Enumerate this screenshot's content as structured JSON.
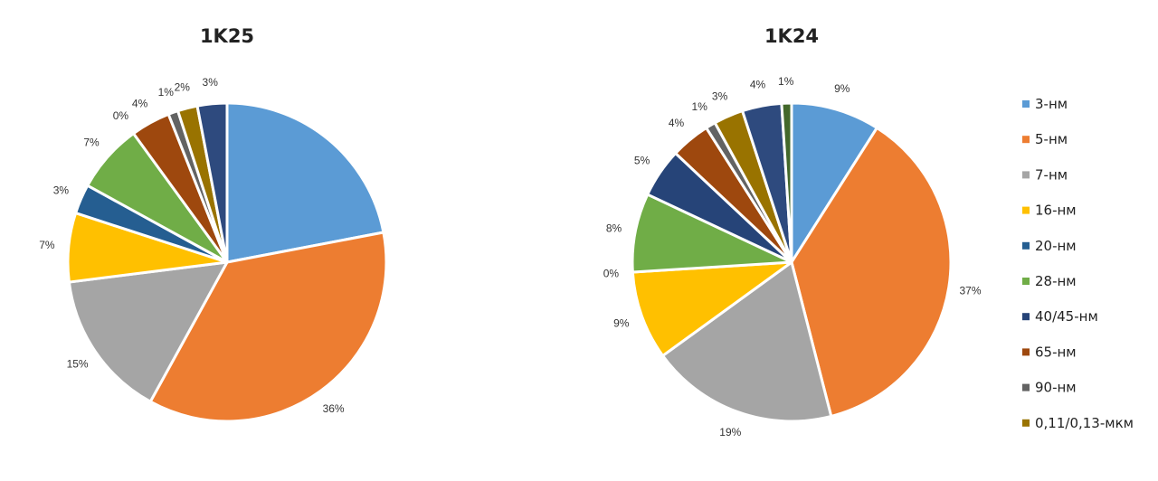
{
  "chart_data": [
    {
      "type": "pie",
      "title": "1K25",
      "categories": [
        "3-нм",
        "5-нм",
        "7-нм",
        "16-нм",
        "20-нм",
        "28-нм",
        "40/45-нм",
        "65-нм",
        "90-нм",
        "0,11/0,13-мкм",
        ""
      ],
      "values": [
        22,
        36,
        15,
        7,
        3,
        7,
        0,
        4,
        1,
        2,
        3
      ],
      "labels": [
        "",
        "36%",
        "15%",
        "7%",
        "3%",
        "7%",
        "0%",
        "4%",
        "1%",
        "2%",
        "3%"
      ]
    },
    {
      "type": "pie",
      "title": "1K24",
      "categories": [
        "3-нм",
        "5-нм",
        "7-нм",
        "16-нм",
        "20-нм",
        "28-нм",
        "40/45-нм",
        "65-нм",
        "90-нм",
        "0,11/0,13-мкм",
        "",
        ""
      ],
      "values": [
        9,
        37,
        19,
        9,
        0,
        8,
        5,
        4,
        1,
        3,
        4,
        1
      ],
      "labels": [
        "9%",
        "37%",
        "19%",
        "9%",
        "0%",
        "8%",
        "5%",
        "4%",
        "1%",
        "3%",
        "4%",
        "1%"
      ]
    }
  ],
  "legend": [
    "3-нм",
    "5-нм",
    "7-нм",
    "16-нм",
    "20-нм",
    "28-нм",
    "40/45-нм",
    "65-нм",
    "90-нм",
    "0,11/0,13-мкм"
  ],
  "colors": [
    "#5B9BD5",
    "#ED7D31",
    "#A5A5A5",
    "#FFC000",
    "#255E91",
    "#70AD47",
    "#264478",
    "#9E480E",
    "#636363",
    "#997300",
    "#2E4A7E",
    "#43682B"
  ]
}
